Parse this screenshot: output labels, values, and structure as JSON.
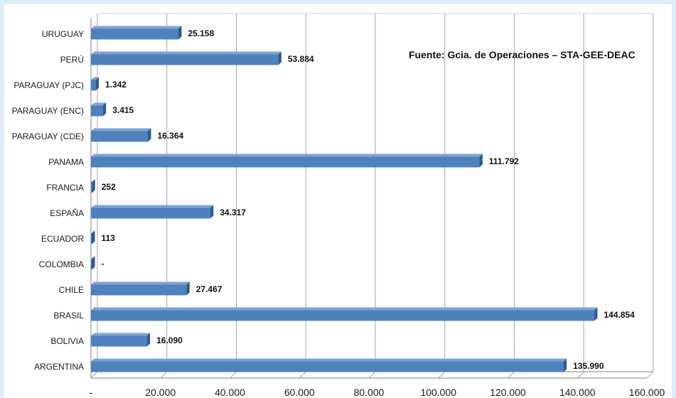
{
  "chart_data": {
    "type": "bar",
    "orientation": "horizontal",
    "categories": [
      "ARGENTINA",
      "BOLIVIA",
      "BRASIL",
      "CHILE",
      "COLOMBIA",
      "ECUADOR",
      "ESPAÑA",
      "FRANCIA",
      "PANAMA",
      "PARAGUAY (CDE)",
      "PARAGUAY (ENC)",
      "PARAGUAY (PJC)",
      "PERÚ",
      "URUGUAY"
    ],
    "values": [
      135990,
      16090,
      144854,
      27467,
      0,
      113,
      34317,
      252,
      111792,
      16364,
      3415,
      1342,
      53884,
      25158
    ],
    "data_labels": [
      "135.990",
      "16.090",
      "144.854",
      "27.467",
      "-",
      "113",
      "34.317",
      "252",
      "111.792",
      "16.364",
      "3.415",
      "1.342",
      "53.884",
      "25.158"
    ],
    "xlim": [
      0,
      160000
    ],
    "x_ticks": [
      0,
      20000,
      40000,
      60000,
      80000,
      100000,
      120000,
      140000,
      160000
    ],
    "x_tick_labels": [
      "-",
      "20.000",
      "40.000",
      "60.000",
      "80.000",
      "100.000",
      "120.000",
      "140.000",
      "160.000"
    ],
    "annotation": "Fuente: Gcia. de Operaciones – STA-GEE-DEAC",
    "grid": true,
    "bar_color": "#4f81bd",
    "bar_top_color": "#7fa3d4",
    "bar_end_color": "#2e5a91"
  }
}
